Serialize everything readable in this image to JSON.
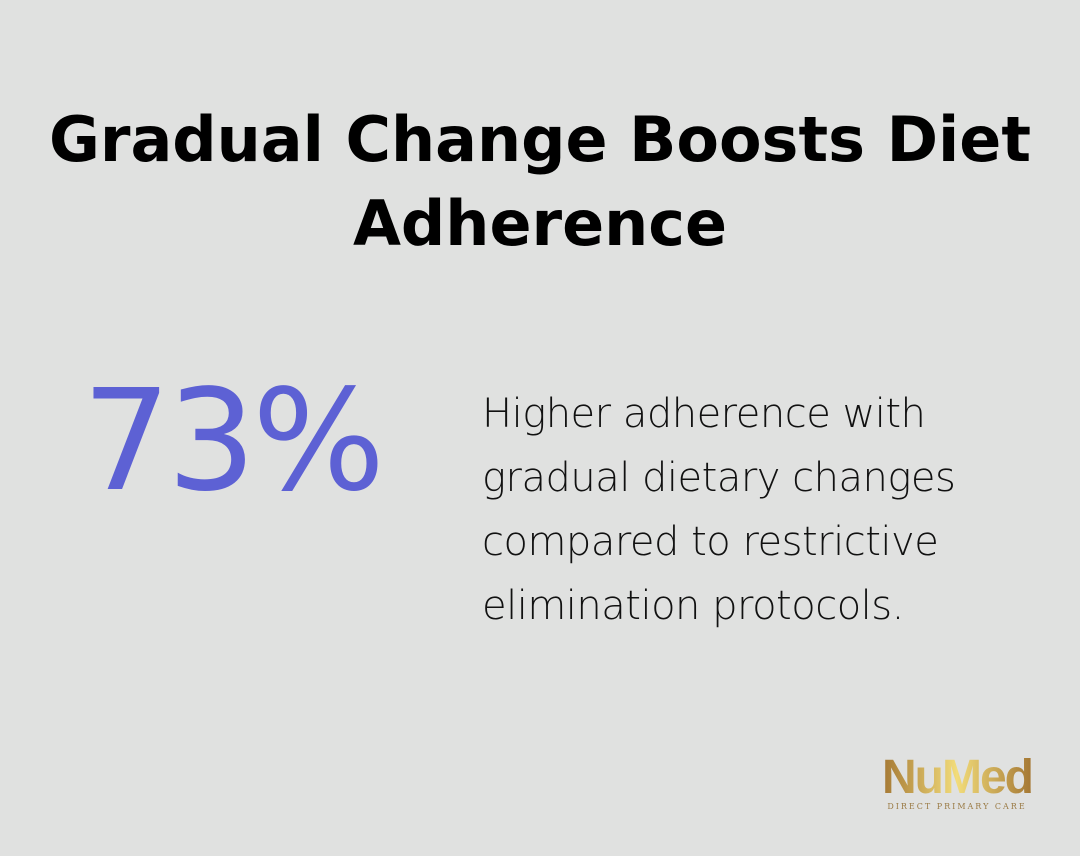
{
  "title": "Gradual Change Boosts Diet Adherence",
  "stat": {
    "value": "73%",
    "accent_color": "#5d61d4"
  },
  "description": "Higher adherence with gradual dietary changes compared to restrictive elimination protocols.",
  "logo": {
    "name": "NuMed",
    "tagline": "DIRECT PRIMARY CARE"
  }
}
